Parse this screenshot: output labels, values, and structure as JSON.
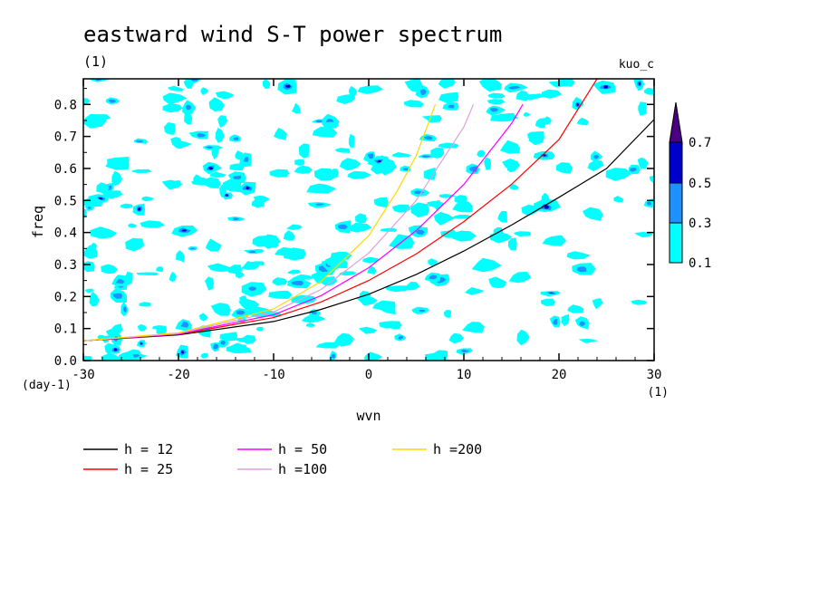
{
  "chart_data": {
    "type": "contour",
    "title": "eastward wind S-T power spectrum",
    "subtitle_left": "(1)",
    "subtitle_right": "kuo_c",
    "xlabel": "wvn",
    "x_unit": "(1)",
    "ylabel": "freq",
    "y_unit": "(day-1)",
    "xlim": [
      -30,
      30
    ],
    "ylim": [
      0,
      0.88
    ],
    "x_ticks": [
      "-30",
      "-20",
      "-10",
      "0",
      "10",
      "20",
      "30"
    ],
    "y_ticks": [
      "0.0",
      "0.1",
      "0.2",
      "0.3",
      "0.4",
      "0.5",
      "0.6",
      "0.7",
      "0.8"
    ],
    "colorbar": {
      "levels": [
        "0.1",
        "0.3",
        "0.5",
        "0.7"
      ],
      "colors": [
        "#00ffff",
        "#1e90ff",
        "#0000cd",
        "#4b0082"
      ]
    },
    "series": [
      {
        "name": "h = 12",
        "color": "#000000",
        "x": [
          -30,
          -20,
          -10,
          -5,
          0,
          5,
          10,
          15,
          20,
          25,
          30
        ],
        "y": [
          0.062,
          0.08,
          0.122,
          0.16,
          0.207,
          0.269,
          0.342,
          0.423,
          0.51,
          0.6,
          0.753
        ]
      },
      {
        "name": "h = 25",
        "color": "#ff0000",
        "x": [
          -30,
          -20,
          -10,
          -5,
          0,
          5,
          10,
          15,
          20,
          24
        ],
        "y": [
          0.062,
          0.082,
          0.134,
          0.183,
          0.25,
          0.333,
          0.434,
          0.55,
          0.69,
          0.88
        ]
      },
      {
        "name": "h = 50",
        "color": "#ff00ff",
        "x": [
          -30,
          -20,
          -10,
          -5,
          0,
          5,
          10,
          15,
          16.2
        ],
        "y": [
          0.062,
          0.083,
          0.143,
          0.203,
          0.29,
          0.406,
          0.55,
          0.74,
          0.8
        ]
      },
      {
        "name": "h =100",
        "color": "#dda0dd",
        "x": [
          -30,
          -20,
          -10,
          -5,
          0,
          5,
          10,
          11
        ],
        "y": [
          0.062,
          0.085,
          0.152,
          0.222,
          0.336,
          0.5,
          0.73,
          0.8
        ]
      },
      {
        "name": "h =200",
        "color": "#ffd700",
        "x": [
          -30,
          -20,
          -10,
          -5,
          0,
          3,
          5,
          7
        ],
        "y": [
          0.062,
          0.087,
          0.161,
          0.247,
          0.39,
          0.53,
          0.64,
          0.8
        ]
      }
    ]
  }
}
